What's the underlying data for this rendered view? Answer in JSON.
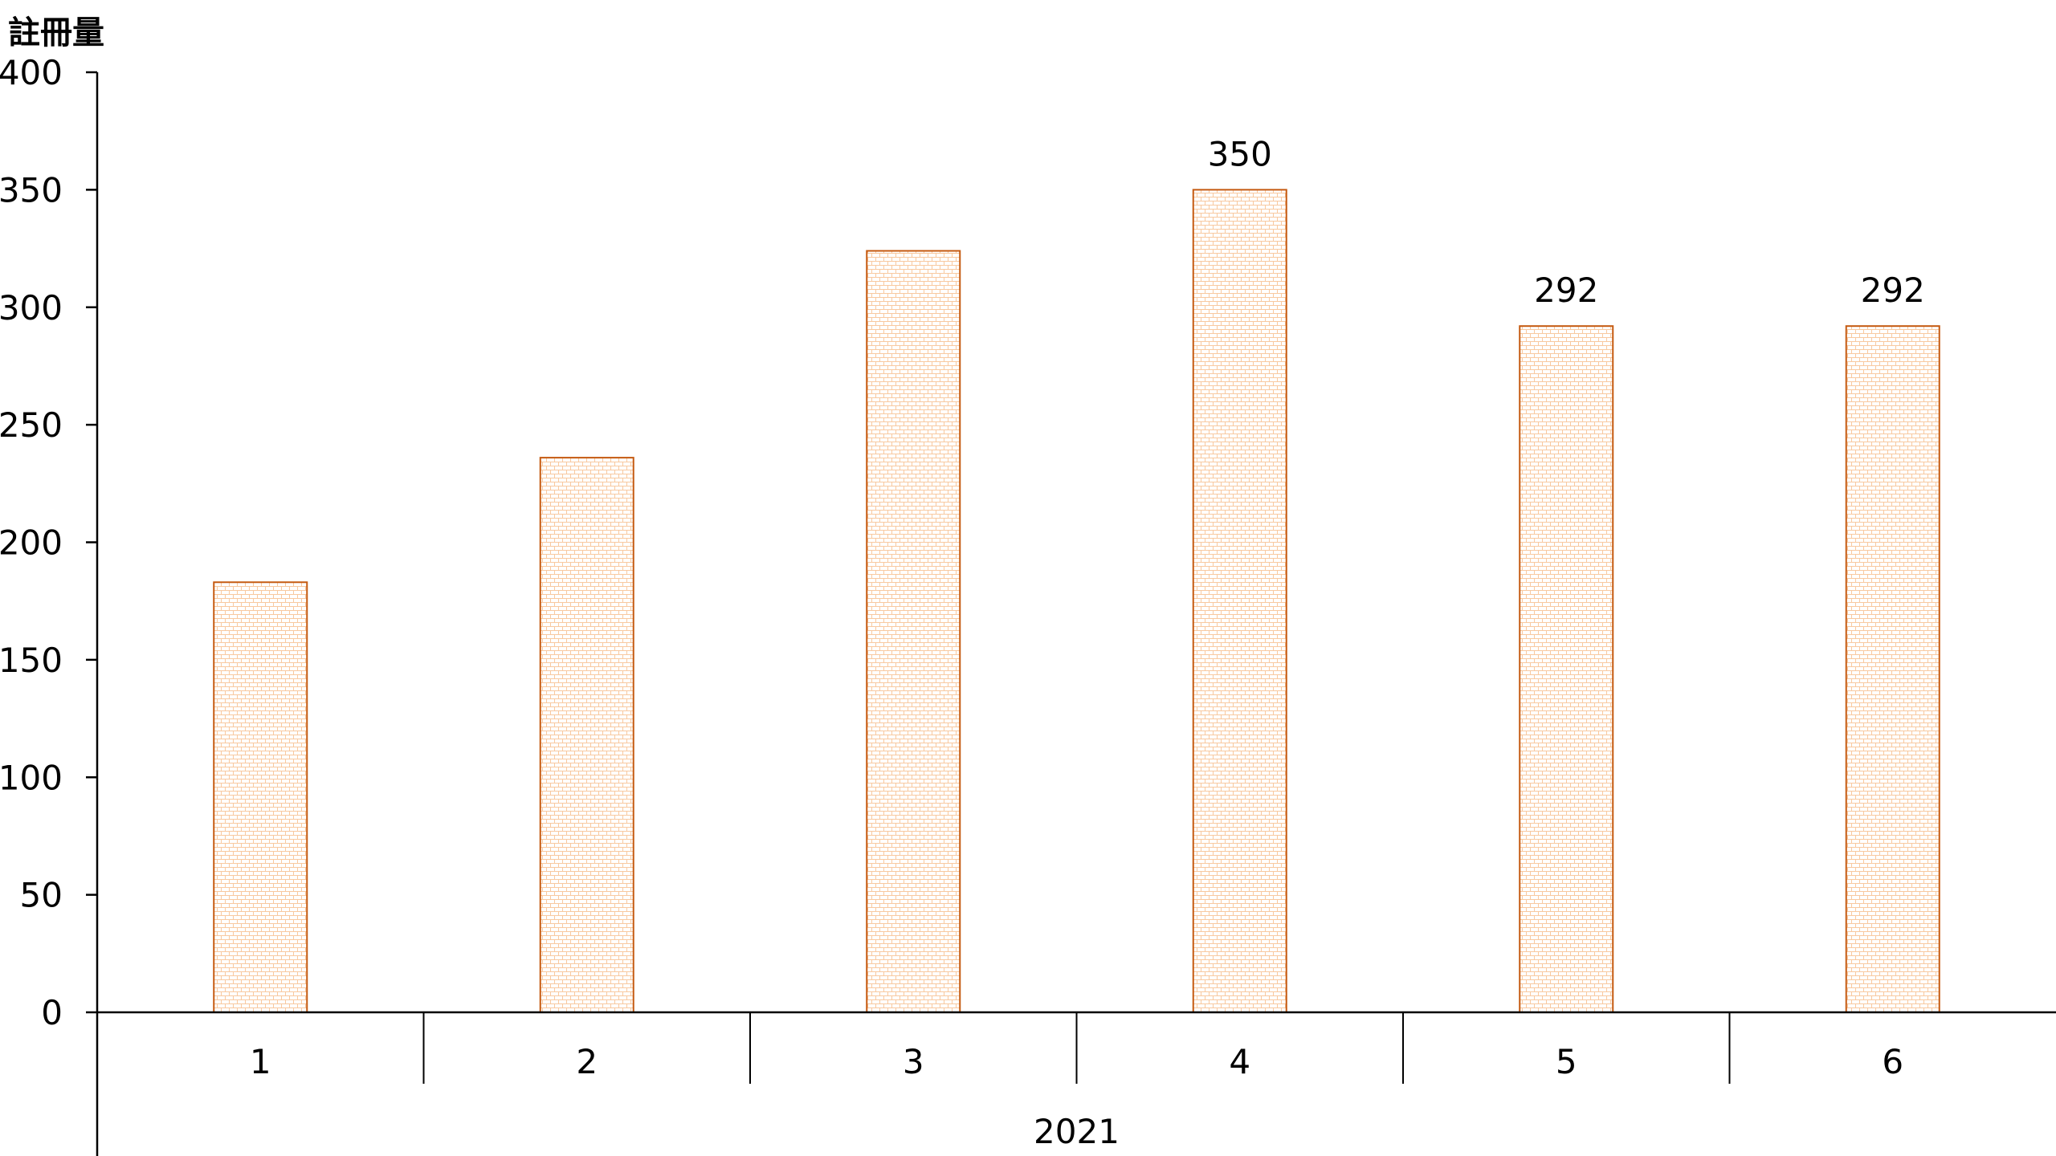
{
  "chart_data": {
    "type": "bar",
    "title": "",
    "ylabel": "註冊量",
    "xlabel": "",
    "categories": [
      "1",
      "2",
      "3",
      "4",
      "5",
      "6"
    ],
    "group_label": "2021",
    "values": [
      183,
      236,
      324,
      350,
      292,
      292
    ],
    "data_labels": [
      null,
      null,
      null,
      "350",
      "292",
      "292"
    ],
    "ylim": [
      0,
      400
    ],
    "yticks": [
      0,
      50,
      100,
      150,
      200,
      250,
      300,
      350,
      400
    ],
    "grid": false,
    "legend": "none",
    "colors": {
      "bar_border": "#c55a11",
      "bar_pattern": "#f8c9a0",
      "pattern": "brick"
    }
  }
}
